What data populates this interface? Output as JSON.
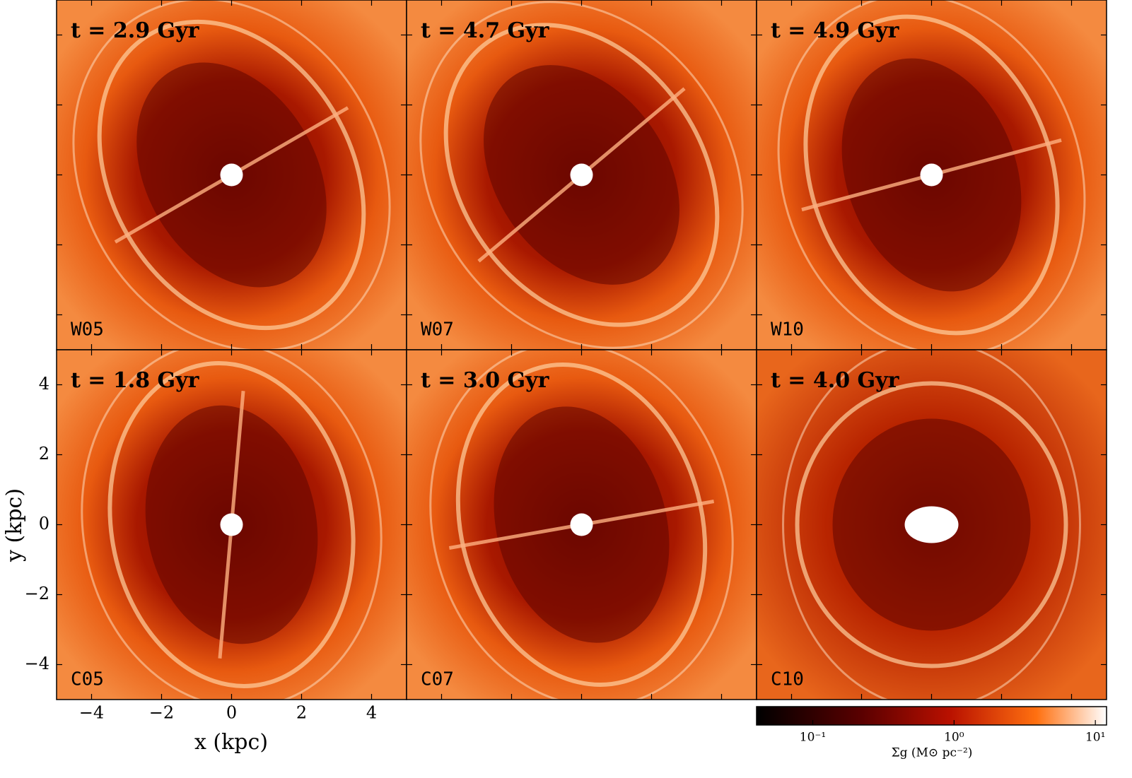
{
  "chart_data": {
    "type": "image-grid",
    "panels": [
      {
        "time": "t = 2.9 Gyr",
        "label": "W05"
      },
      {
        "time": "t = 4.7 Gyr",
        "label": "W07"
      },
      {
        "time": "t = 4.9 Gyr",
        "label": "W10"
      },
      {
        "time": "t = 1.8 Gyr",
        "label": "C05"
      },
      {
        "time": "t = 3.0 Gyr",
        "label": "C07"
      },
      {
        "time": "t = 4.0 Gyr",
        "label": "C10"
      }
    ],
    "xlabel": "x (kpc)",
    "ylabel": "y (kpc)",
    "xlim": [
      -5,
      5
    ],
    "ylim": [
      -5,
      5
    ],
    "xticks": [
      {
        "value": -4,
        "label": "−4"
      },
      {
        "value": -2,
        "label": "−2"
      },
      0,
      2,
      4
    ],
    "yticks": [
      {
        "value": -4,
        "label": "−4"
      },
      {
        "value": -2,
        "label": "−2"
      },
      0,
      2,
      4
    ],
    "colorbar": {
      "label": "Σg (M⊙ pc⁻²)",
      "log": true,
      "lim": [
        0.04,
        12
      ],
      "ticks": [
        {
          "value": 0.1,
          "label": "10⁻¹"
        },
        {
          "value": 1,
          "label": "10⁰"
        },
        {
          "value": 10,
          "label": "10¹"
        }
      ]
    }
  }
}
